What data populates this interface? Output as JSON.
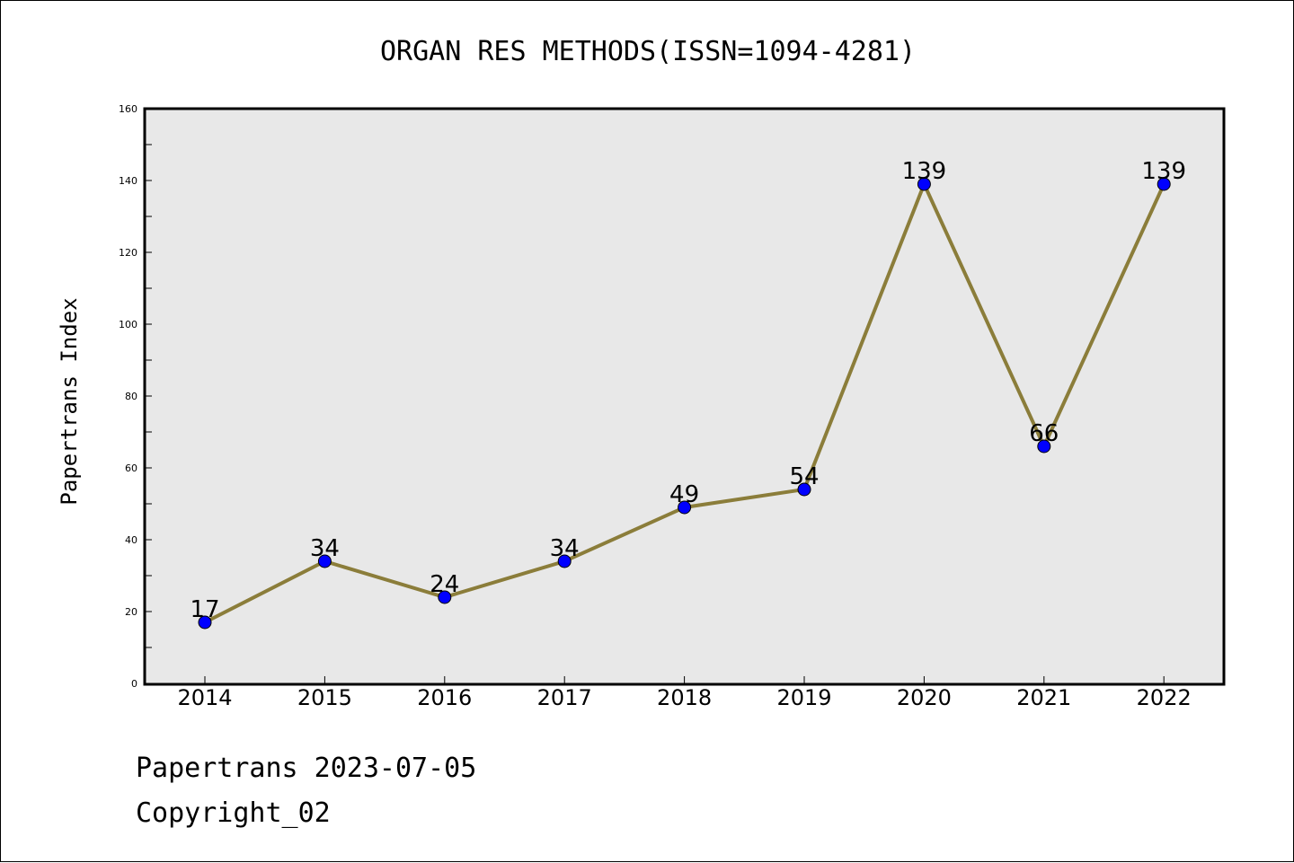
{
  "chart_data": {
    "type": "line",
    "title": "ORGAN RES METHODS(ISSN=1094-4281)",
    "xlabel": "",
    "ylabel": "Papertrans Index",
    "categories": [
      "2014",
      "2015",
      "2016",
      "2017",
      "2018",
      "2019",
      "2020",
      "2021",
      "2022"
    ],
    "series": [
      {
        "values": [
          17,
          34,
          24,
          34,
          49,
          54,
          139,
          66,
          139
        ]
      }
    ],
    "ylim": [
      0,
      160
    ],
    "yticks": [
      0,
      20,
      40,
      60,
      80,
      100,
      120,
      140,
      160
    ],
    "grid": false,
    "legend": "none",
    "data_labels": true,
    "line_color": "#8b7d3a",
    "marker_color": "#0000ff",
    "plot_background": "#e8e8e8"
  },
  "footer": {
    "line1": "Papertrans 2023-07-05",
    "line2": "Copyright_02"
  }
}
